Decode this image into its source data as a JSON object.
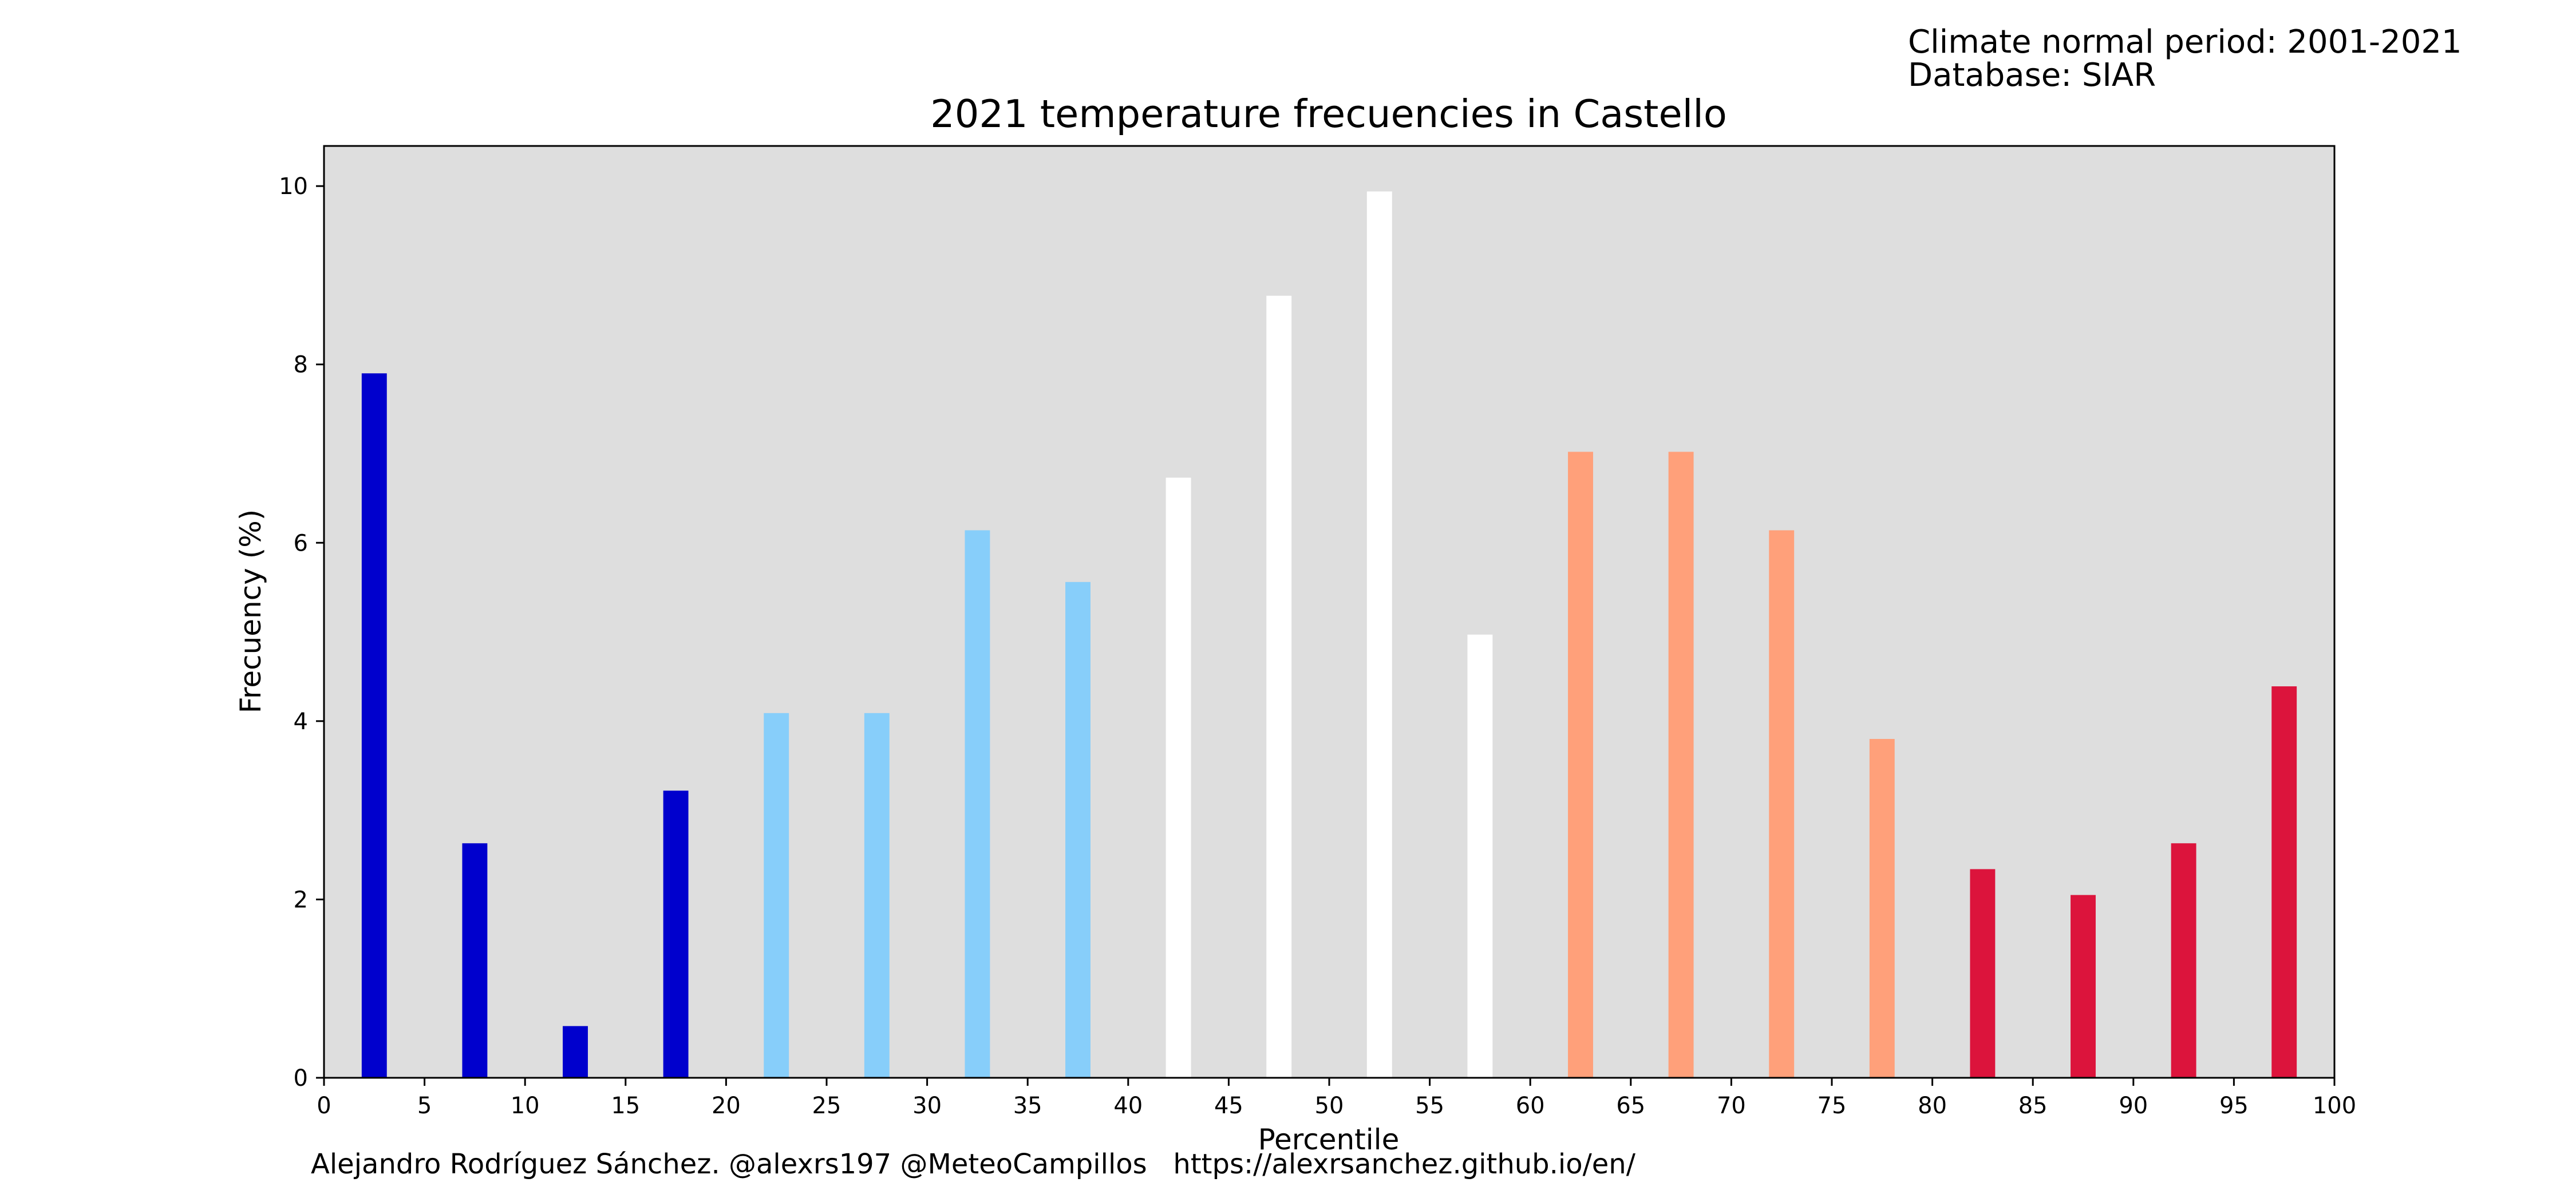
{
  "header": {
    "lines": [
      "Climate normal period: 2001-2021",
      "Database: SIAR"
    ]
  },
  "footer": {
    "credit": "Alejandro Rodríguez Sánchez. @alexrs197 @MeteoCampillos   https://alexrsanchez.github.io/en/"
  },
  "chart_data": {
    "type": "bar",
    "title": "2021 temperature frecuencies in Castello",
    "xlabel": "Percentile",
    "ylabel": "Frecuency (%)",
    "xlim": [
      0,
      100
    ],
    "ylim": [
      0,
      10.45
    ],
    "xticks": [
      0,
      5,
      10,
      15,
      20,
      25,
      30,
      35,
      40,
      45,
      50,
      55,
      60,
      65,
      70,
      75,
      80,
      85,
      90,
      95,
      100
    ],
    "yticks": [
      0,
      2,
      4,
      6,
      8,
      10
    ],
    "bar_width": 1.25,
    "grid": false,
    "background_color": "#dedede",
    "x": [
      2.5,
      7.5,
      12.5,
      17.5,
      22.5,
      27.5,
      32.5,
      37.5,
      42.5,
      47.5,
      52.5,
      57.5,
      62.5,
      67.5,
      72.5,
      77.5,
      82.5,
      87.5,
      92.5,
      97.5
    ],
    "values": [
      7.9,
      2.63,
      0.58,
      3.22,
      4.09,
      4.09,
      6.14,
      5.56,
      6.73,
      8.77,
      9.94,
      4.97,
      7.02,
      7.02,
      6.14,
      3.8,
      2.34,
      2.05,
      2.63,
      4.39
    ],
    "colors": [
      "#0000cd",
      "#0000cd",
      "#0000cd",
      "#0000cd",
      "#87cefa",
      "#87cefa",
      "#87cefa",
      "#87cefa",
      "#ffffff",
      "#ffffff",
      "#ffffff",
      "#ffffff",
      "#ffa07a",
      "#ffa07a",
      "#ffa07a",
      "#ffa07a",
      "#dc143c",
      "#dc143c",
      "#dc143c",
      "#dc143c"
    ]
  }
}
